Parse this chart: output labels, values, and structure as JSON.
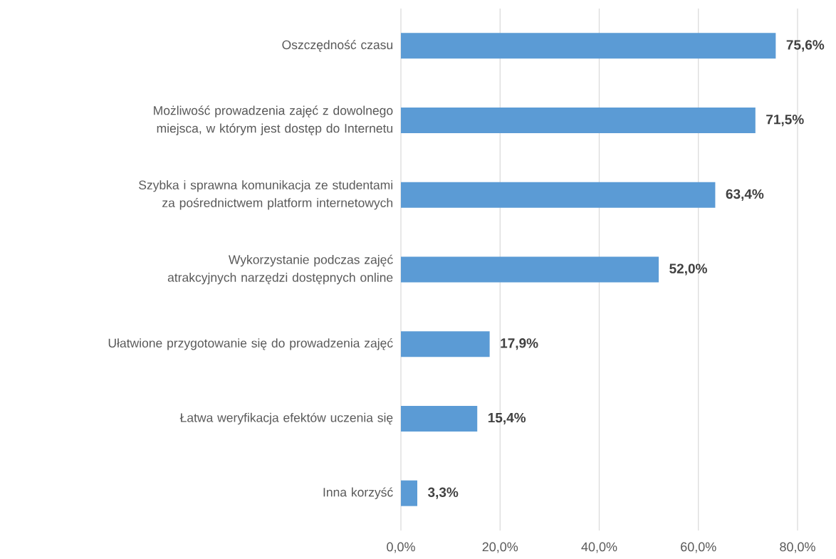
{
  "chart_data": {
    "type": "bar",
    "orientation": "horizontal",
    "categories": [
      "Oszczędność czasu",
      "Możliwość prowadzenia zajęć z dowolnego miejsca, w którym jest dostęp do Internetu",
      "Szybka i sprawna komunikacja ze studentami za pośrednictwem platform internetowych",
      "Wykorzystanie podczas zajęć atrakcyjnych narzędzi dostępnych online",
      "Ułatwione przygotowanie się do prowadzenia zajęć",
      "Łatwa weryfikacja efektów uczenia się",
      "Inna korzyść"
    ],
    "values": [
      75.6,
      71.5,
      63.4,
      52.0,
      17.9,
      15.4,
      3.3
    ],
    "value_labels": [
      "75,6%",
      "71,5%",
      "63,4%",
      "52,0%",
      "17,9%",
      "15,4%",
      "3,3%"
    ],
    "color": "#5b9bd5",
    "xlim": [
      0,
      80
    ],
    "xticks": [
      {
        "value": 0,
        "label": "0,0%"
      },
      {
        "value": 20,
        "label": "20,0%"
      },
      {
        "value": 40,
        "label": "40,0%"
      },
      {
        "value": 60,
        "label": "60,0%"
      },
      {
        "value": 80,
        "label": "80,0%"
      }
    ],
    "grid": "x"
  }
}
